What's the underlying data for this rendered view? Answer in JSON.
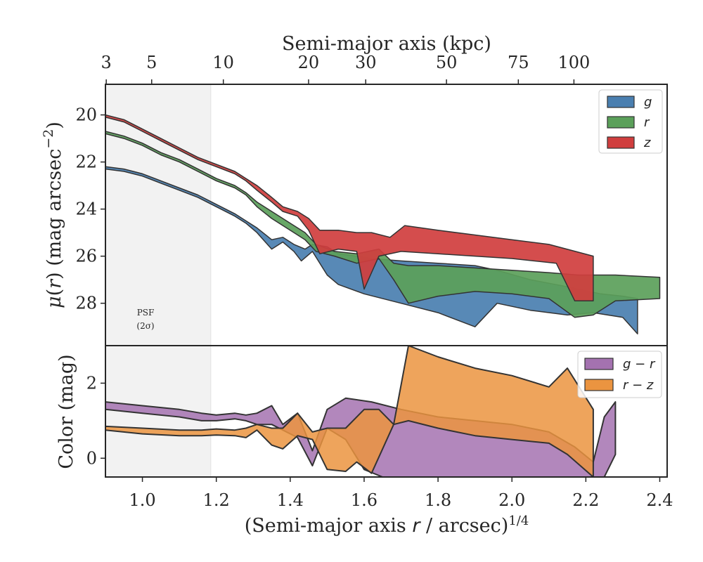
{
  "chart_data": [
    {
      "type": "area",
      "panel": "surface-brightness",
      "top_axis": {
        "label": "Semi-major axis (kpc)",
        "ticks": [
          "3",
          "5",
          "10",
          "20",
          "30",
          "50",
          "75",
          "100"
        ],
        "tick_values": [
          3,
          5,
          10,
          20,
          30,
          50,
          75,
          100
        ],
        "scale": "r^(1/4) positions"
      },
      "ylabel": "μ(r) (mag arcsec⁻²)",
      "ylim": [
        18.7,
        29.8
      ],
      "y_inverted": true,
      "yticks": [
        20,
        22,
        24,
        26,
        28
      ],
      "xlim": [
        0.9,
        2.42
      ],
      "psf_region": {
        "x_max": 1.185,
        "label_line1": "PSF",
        "label_line2": "(2σ)"
      },
      "legend": {
        "placement": "top-right",
        "entries": [
          "g",
          "r",
          "z"
        ]
      },
      "series": [
        {
          "name": "g",
          "color": "#4a7fb0",
          "upper": [
            [
              0.9,
              22.2
            ],
            [
              0.95,
              22.3
            ],
            [
              1.0,
              22.5
            ],
            [
              1.05,
              22.8
            ],
            [
              1.1,
              23.1
            ],
            [
              1.15,
              23.4
            ],
            [
              1.2,
              23.8
            ],
            [
              1.25,
              24.2
            ],
            [
              1.28,
              24.5
            ],
            [
              1.31,
              24.8
            ],
            [
              1.35,
              25.3
            ],
            [
              1.38,
              25.2
            ],
            [
              1.41,
              25.5
            ],
            [
              1.44,
              25.7
            ],
            [
              1.46,
              25.5
            ],
            [
              1.5,
              25.6
            ],
            [
              1.53,
              25.9
            ],
            [
              1.58,
              26.0
            ],
            [
              1.62,
              26.1
            ],
            [
              1.7,
              26.2
            ],
            [
              1.8,
              26.3
            ],
            [
              1.9,
              26.4
            ],
            [
              1.96,
              26.6
            ],
            [
              2.05,
              27.0
            ],
            [
              2.15,
              27.3
            ],
            [
              2.24,
              27.6
            ],
            [
              2.3,
              27.7
            ],
            [
              2.34,
              27.8
            ]
          ],
          "lower": [
            [
              0.9,
              22.3
            ],
            [
              0.95,
              22.4
            ],
            [
              1.0,
              22.6
            ],
            [
              1.05,
              22.9
            ],
            [
              1.1,
              23.2
            ],
            [
              1.15,
              23.5
            ],
            [
              1.2,
              23.9
            ],
            [
              1.25,
              24.3
            ],
            [
              1.28,
              24.6
            ],
            [
              1.31,
              25.0
            ],
            [
              1.35,
              25.7
            ],
            [
              1.38,
              25.4
            ],
            [
              1.41,
              25.8
            ],
            [
              1.43,
              26.2
            ],
            [
              1.46,
              25.8
            ],
            [
              1.5,
              26.8
            ],
            [
              1.53,
              27.2
            ],
            [
              1.6,
              27.6
            ],
            [
              1.7,
              28.0
            ],
            [
              1.8,
              28.4
            ],
            [
              1.9,
              29.0
            ],
            [
              1.96,
              28.0
            ],
            [
              2.05,
              28.3
            ],
            [
              2.15,
              28.5
            ],
            [
              2.22,
              28.4
            ],
            [
              2.3,
              28.6
            ],
            [
              2.34,
              29.3
            ]
          ]
        },
        {
          "name": "r",
          "color": "#5ba05a",
          "upper": [
            [
              0.9,
              20.7
            ],
            [
              0.95,
              20.9
            ],
            [
              1.0,
              21.2
            ],
            [
              1.05,
              21.6
            ],
            [
              1.1,
              21.9
            ],
            [
              1.15,
              22.3
            ],
            [
              1.2,
              22.7
            ],
            [
              1.25,
              23.0
            ],
            [
              1.28,
              23.3
            ],
            [
              1.31,
              23.7
            ],
            [
              1.35,
              24.1
            ],
            [
              1.4,
              24.6
            ],
            [
              1.44,
              25.0
            ],
            [
              1.47,
              25.5
            ],
            [
              1.52,
              25.8
            ],
            [
              1.58,
              25.9
            ],
            [
              1.64,
              25.7
            ],
            [
              1.68,
              26.3
            ],
            [
              1.72,
              26.4
            ],
            [
              1.8,
              26.4
            ],
            [
              1.9,
              26.5
            ],
            [
              2.0,
              26.6
            ],
            [
              2.1,
              26.7
            ],
            [
              2.18,
              26.8
            ],
            [
              2.28,
              26.8
            ],
            [
              2.4,
              26.9
            ]
          ],
          "lower": [
            [
              0.9,
              20.8
            ],
            [
              0.95,
              21.0
            ],
            [
              1.0,
              21.3
            ],
            [
              1.05,
              21.7
            ],
            [
              1.1,
              22.0
            ],
            [
              1.15,
              22.4
            ],
            [
              1.2,
              22.8
            ],
            [
              1.25,
              23.1
            ],
            [
              1.28,
              23.4
            ],
            [
              1.31,
              23.9
            ],
            [
              1.35,
              24.4
            ],
            [
              1.4,
              24.9
            ],
            [
              1.44,
              25.3
            ],
            [
              1.47,
              25.8
            ],
            [
              1.52,
              26.0
            ],
            [
              1.58,
              26.3
            ],
            [
              1.64,
              26.1
            ],
            [
              1.68,
              27.0
            ],
            [
              1.72,
              28.0
            ],
            [
              1.8,
              27.7
            ],
            [
              1.9,
              27.5
            ],
            [
              2.0,
              27.6
            ],
            [
              2.1,
              27.8
            ],
            [
              2.17,
              28.6
            ],
            [
              2.22,
              28.5
            ],
            [
              2.28,
              27.9
            ],
            [
              2.4,
              27.8
            ]
          ]
        },
        {
          "name": "z",
          "color": "#d03e3e",
          "upper": [
            [
              0.9,
              20.0
            ],
            [
              0.95,
              20.2
            ],
            [
              1.0,
              20.6
            ],
            [
              1.05,
              21.0
            ],
            [
              1.1,
              21.4
            ],
            [
              1.15,
              21.8
            ],
            [
              1.2,
              22.1
            ],
            [
              1.25,
              22.4
            ],
            [
              1.28,
              22.7
            ],
            [
              1.31,
              23.0
            ],
            [
              1.35,
              23.5
            ],
            [
              1.38,
              23.9
            ],
            [
              1.42,
              24.1
            ],
            [
              1.45,
              24.4
            ],
            [
              1.48,
              24.9
            ],
            [
              1.53,
              24.9
            ],
            [
              1.58,
              25.0
            ],
            [
              1.62,
              25.0
            ],
            [
              1.67,
              25.2
            ],
            [
              1.71,
              24.7
            ],
            [
              1.8,
              24.9
            ],
            [
              1.9,
              25.1
            ],
            [
              2.0,
              25.3
            ],
            [
              2.1,
              25.5
            ],
            [
              2.22,
              26.0
            ]
          ],
          "lower": [
            [
              0.9,
              20.1
            ],
            [
              0.95,
              20.3
            ],
            [
              1.0,
              20.7
            ],
            [
              1.05,
              21.1
            ],
            [
              1.1,
              21.5
            ],
            [
              1.15,
              21.9
            ],
            [
              1.2,
              22.2
            ],
            [
              1.25,
              22.5
            ],
            [
              1.28,
              22.8
            ],
            [
              1.31,
              23.2
            ],
            [
              1.35,
              23.7
            ],
            [
              1.38,
              24.1
            ],
            [
              1.42,
              24.3
            ],
            [
              1.45,
              24.9
            ],
            [
              1.48,
              25.9
            ],
            [
              1.53,
              25.7
            ],
            [
              1.58,
              25.8
            ],
            [
              1.6,
              27.4
            ],
            [
              1.64,
              26.0
            ],
            [
              1.7,
              25.8
            ],
            [
              1.8,
              25.9
            ],
            [
              1.9,
              26.0
            ],
            [
              2.0,
              26.1
            ],
            [
              2.12,
              26.3
            ],
            [
              2.17,
              27.9
            ],
            [
              2.22,
              27.9
            ]
          ]
        }
      ]
    },
    {
      "type": "area",
      "panel": "color",
      "xlabel": "(Semi-major axis r / arcsec)¹ᐟ⁴",
      "xlabel_main": "(Semi-major axis ",
      "xlabel_var": "r",
      "xlabel_tail": " / arcsec)",
      "xlabel_exp": "1/4",
      "ylabel": "Color (mag)",
      "ylim": [
        -0.5,
        3.0
      ],
      "yticks": [
        0,
        2
      ],
      "xlim": [
        0.9,
        2.42
      ],
      "xticks": [
        1.0,
        1.2,
        1.4,
        1.6,
        1.8,
        2.0,
        2.2,
        2.4
      ],
      "xtick_labels": [
        "1.0",
        "1.2",
        "1.4",
        "1.6",
        "1.8",
        "2.0",
        "2.2",
        "2.4"
      ],
      "legend": {
        "placement": "top-right",
        "entries": [
          "g − r",
          "r − z"
        ]
      },
      "series": [
        {
          "name": "g − r",
          "color": "#a472b0",
          "upper": [
            [
              0.9,
              1.5
            ],
            [
              1.0,
              1.4
            ],
            [
              1.1,
              1.3
            ],
            [
              1.16,
              1.2
            ],
            [
              1.2,
              1.15
            ],
            [
              1.25,
              1.2
            ],
            [
              1.28,
              1.15
            ],
            [
              1.31,
              1.2
            ],
            [
              1.35,
              1.4
            ],
            [
              1.38,
              0.9
            ],
            [
              1.42,
              1.2
            ],
            [
              1.46,
              0.2
            ],
            [
              1.5,
              1.3
            ],
            [
              1.55,
              1.6
            ],
            [
              1.62,
              1.5
            ],
            [
              1.7,
              1.3
            ],
            [
              1.8,
              1.1
            ],
            [
              1.9,
              1.0
            ],
            [
              2.0,
              0.9
            ],
            [
              2.1,
              0.7
            ],
            [
              2.17,
              0.3
            ],
            [
              2.22,
              -0.1
            ],
            [
              2.25,
              1.1
            ],
            [
              2.28,
              1.5
            ]
          ],
          "lower": [
            [
              0.9,
              1.3
            ],
            [
              1.0,
              1.2
            ],
            [
              1.1,
              1.1
            ],
            [
              1.16,
              1.0
            ],
            [
              1.2,
              1.0
            ],
            [
              1.25,
              1.05
            ],
            [
              1.28,
              1.0
            ],
            [
              1.31,
              0.9
            ],
            [
              1.35,
              0.9
            ],
            [
              1.38,
              0.75
            ],
            [
              1.42,
              0.55
            ],
            [
              1.46,
              -0.2
            ],
            [
              1.5,
              0.8
            ],
            [
              1.55,
              0.5
            ],
            [
              1.6,
              -0.3
            ],
            [
              1.65,
              -0.5
            ],
            [
              1.7,
              -0.5
            ],
            [
              1.8,
              -0.5
            ],
            [
              1.9,
              -0.5
            ],
            [
              2.0,
              -0.5
            ],
            [
              2.1,
              -0.5
            ],
            [
              2.17,
              -0.5
            ],
            [
              2.22,
              -0.5
            ],
            [
              2.25,
              -0.5
            ],
            [
              2.28,
              0.1
            ]
          ]
        },
        {
          "name": "r − z",
          "color": "#eb9440",
          "upper": [
            [
              0.9,
              0.85
            ],
            [
              1.0,
              0.8
            ],
            [
              1.1,
              0.75
            ],
            [
              1.16,
              0.75
            ],
            [
              1.2,
              0.78
            ],
            [
              1.25,
              0.75
            ],
            [
              1.28,
              0.8
            ],
            [
              1.31,
              0.9
            ],
            [
              1.35,
              0.8
            ],
            [
              1.38,
              0.8
            ],
            [
              1.42,
              1.2
            ],
            [
              1.46,
              0.7
            ],
            [
              1.5,
              0.8
            ],
            [
              1.55,
              0.8
            ],
            [
              1.6,
              1.3
            ],
            [
              1.64,
              1.3
            ],
            [
              1.68,
              0.9
            ],
            [
              1.72,
              3.0
            ],
            [
              1.8,
              2.7
            ],
            [
              1.9,
              2.4
            ],
            [
              2.0,
              2.2
            ],
            [
              2.1,
              1.9
            ],
            [
              2.15,
              2.4
            ],
            [
              2.22,
              1.3
            ]
          ],
          "lower": [
            [
              0.9,
              0.75
            ],
            [
              1.0,
              0.65
            ],
            [
              1.1,
              0.6
            ],
            [
              1.16,
              0.6
            ],
            [
              1.2,
              0.62
            ],
            [
              1.25,
              0.6
            ],
            [
              1.28,
              0.55
            ],
            [
              1.31,
              0.75
            ],
            [
              1.35,
              0.35
            ],
            [
              1.38,
              0.25
            ],
            [
              1.42,
              0.6
            ],
            [
              1.46,
              0.5
            ],
            [
              1.5,
              -0.3
            ],
            [
              1.55,
              -0.35
            ],
            [
              1.58,
              -0.1
            ],
            [
              1.62,
              -0.4
            ],
            [
              1.68,
              0.9
            ],
            [
              1.72,
              1.0
            ],
            [
              1.8,
              0.8
            ],
            [
              1.9,
              0.6
            ],
            [
              2.0,
              0.5
            ],
            [
              2.1,
              0.4
            ],
            [
              2.15,
              0.1
            ],
            [
              2.22,
              -0.5
            ]
          ]
        }
      ]
    }
  ]
}
